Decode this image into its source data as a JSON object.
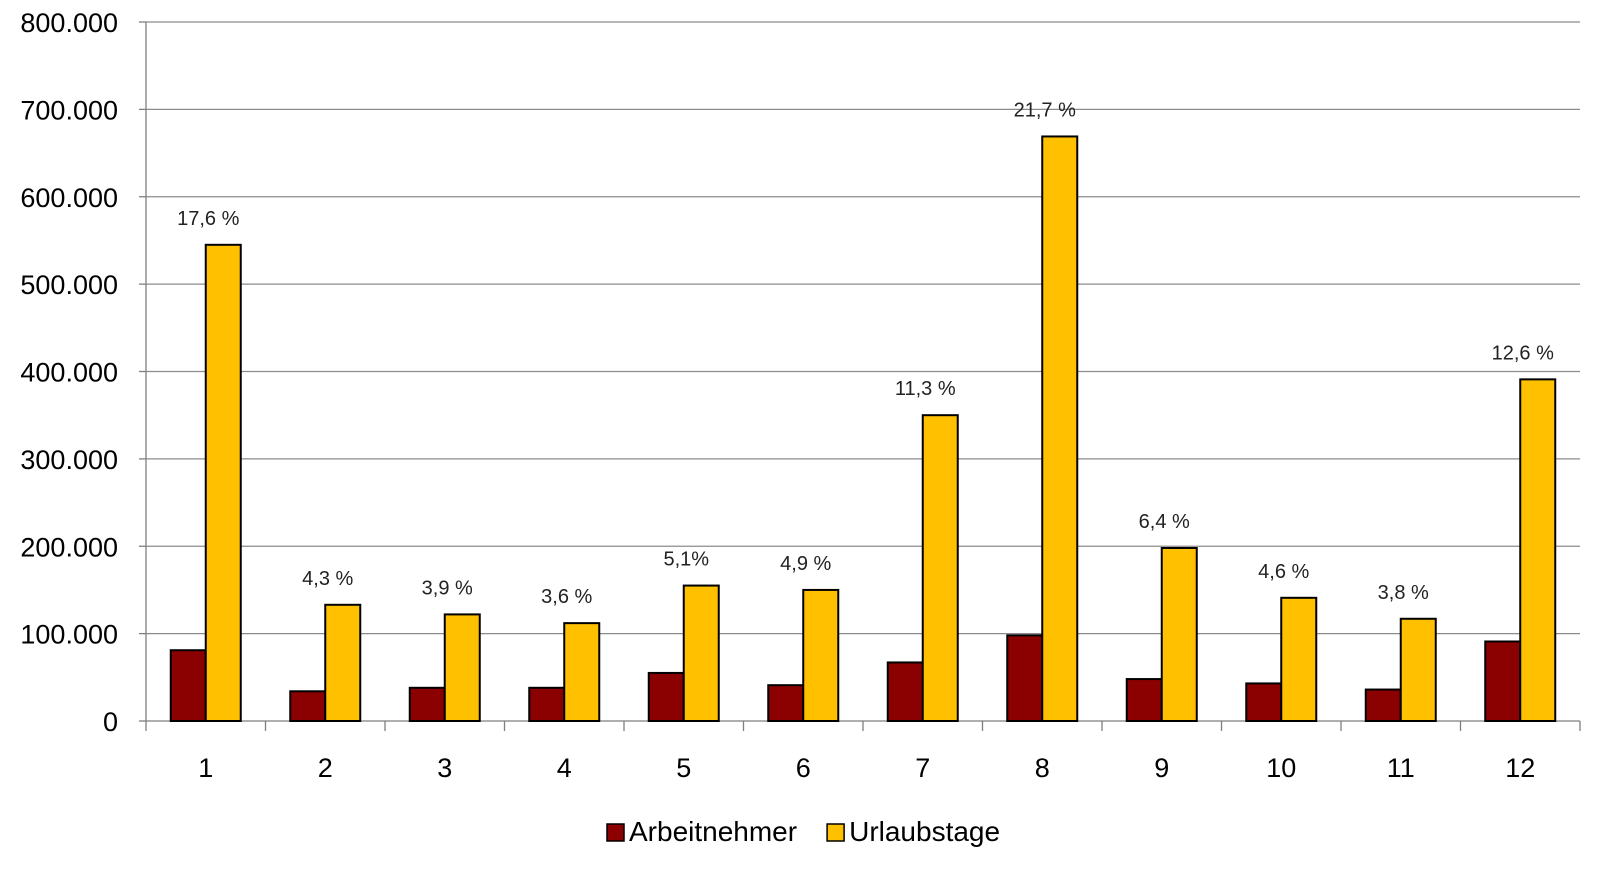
{
  "chart_data": {
    "type": "bar",
    "categories": [
      "1",
      "2",
      "3",
      "4",
      "5",
      "6",
      "7",
      "8",
      "9",
      "10",
      "11",
      "12"
    ],
    "series": [
      {
        "name": "Arbeitnehmer",
        "color": "#8B0000",
        "values": [
          81000,
          34000,
          38000,
          38000,
          55000,
          41000,
          67000,
          98000,
          48000,
          43000,
          36000,
          91000
        ]
      },
      {
        "name": "Urlaubstage",
        "color": "#FFC000",
        "values": [
          545000,
          133000,
          122000,
          112000,
          155000,
          150000,
          350000,
          669000,
          198000,
          141000,
          117000,
          391000
        ]
      }
    ],
    "data_labels": [
      "17,6 %",
      "4,3 %",
      "3,9 %",
      "3,6 %",
      "5,1%",
      "4,9 %",
      "11,3 %",
      "21,7 %",
      "6,4 %",
      "4,6 %",
      "3,8 %",
      "12,6 %"
    ],
    "data_labels_series": "Urlaubstage",
    "y_ticks": [
      "0",
      "100.000",
      "200.000",
      "300.000",
      "400.000",
      "500.000",
      "600.000",
      "700.000",
      "800.000"
    ],
    "ylim": [
      0,
      800000
    ],
    "grid": true,
    "legend_position": "bottom",
    "title": "",
    "xlabel": "",
    "ylabel": ""
  }
}
